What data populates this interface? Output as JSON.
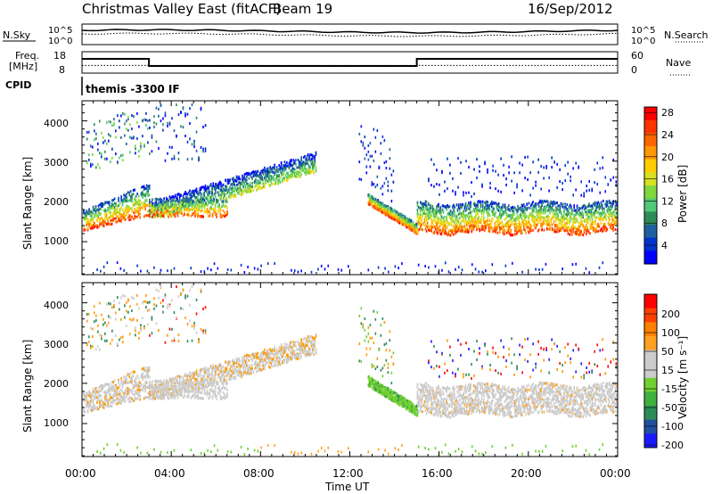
{
  "header": {
    "title": "Christmas Valley East (fitACF)",
    "beam": "Beam 19",
    "date": "16/Sep/2012"
  },
  "top_panels": {
    "nsky_label": "N.Sky",
    "nsearch_label": "N.Search",
    "noise_ticks": [
      "10^5",
      "10^0"
    ],
    "freq_label_1": "Freq.",
    "freq_label_2": "[MHz]",
    "freq_ticks": [
      "18",
      "8"
    ],
    "nave_label": "Nave",
    "nave_ticks": [
      "60",
      "0"
    ],
    "cpid_label": "CPID",
    "cpid_value": "themis -3300 IF",
    "frequency_mhz": [
      {
        "start_ut": 0.0,
        "end_ut": 3.0,
        "value": 15.5
      },
      {
        "start_ut": 3.0,
        "end_ut": 15.0,
        "value": 10.5
      },
      {
        "start_ut": 15.0,
        "end_ut": 24.0,
        "value": 15.5
      }
    ],
    "nave_level": 20
  },
  "power_panel": {
    "ylabel": "Slant Range [km]",
    "yticks": [
      "1000",
      "2000",
      "3000",
      "4000"
    ],
    "colorbar_label": "Power [dB]",
    "colorbar_ticks": [
      "4",
      "8",
      "12",
      "16",
      "20",
      "24",
      "28"
    ],
    "colorbar_colors": [
      "#0000ff",
      "#0033cc",
      "#2060a0",
      "#2e8b57",
      "#50c878",
      "#7fd83c",
      "#d8e020",
      "#ffcc00",
      "#ff9900",
      "#ff6600",
      "#ff3300",
      "#ff0000"
    ]
  },
  "velocity_panel": {
    "ylabel": "Slant Range [km]",
    "yticks": [
      "1000",
      "2000",
      "3000",
      "4000"
    ],
    "colorbar_label": "Velocity [m s⁻¹]",
    "colorbar_ticks": [
      "200",
      "100",
      "50",
      "15",
      "-15",
      "-50",
      "-100",
      "-200"
    ],
    "colorbar_colors": [
      "#1a1aff",
      "#2050a0",
      "#2e8b57",
      "#40b040",
      "#70d030",
      "#cccccc",
      "#cccccc",
      "#ffa020",
      "#ff8000",
      "#ff4000",
      "#ff0000"
    ]
  },
  "xaxis": {
    "label": "Time UT",
    "ticks": [
      "00:00",
      "04:00",
      "08:00",
      "12:00",
      "16:00",
      "20:00",
      "00:00"
    ]
  },
  "chart_data": {
    "type": "heatmap",
    "title": "Christmas Valley East (fitACF)",
    "subtitle": "Beam 19",
    "date": "16/Sep/2012",
    "xlabel": "Time UT",
    "ylabel": "Slant Range [km]",
    "xlim_hours": [
      0,
      24
    ],
    "ylim_km": [
      180,
      4500
    ],
    "series": [
      {
        "name": "Power [dB]",
        "crange": [
          0,
          30
        ]
      },
      {
        "name": "Velocity [m s⁻¹]",
        "crange": [
          -250,
          250
        ]
      }
    ],
    "features": [
      {
        "name": "main_band_morning",
        "t_start": 0.0,
        "t_end": 3.0,
        "range_start": 1300,
        "range_end": 2000
      },
      {
        "name": "rising_arc",
        "t_start": 3.0,
        "t_end": 10.5,
        "range_start": 1700,
        "range_end": 3000
      },
      {
        "name": "descending_arc",
        "t_start": 12.8,
        "t_end": 15.0,
        "range_start": 2000,
        "range_end": 1250
      },
      {
        "name": "evening_band",
        "t_start": 15.0,
        "t_end": 24.0,
        "range_start": 1200,
        "range_end": 1800
      },
      {
        "name": "ground_scatter_near",
        "t_start": 3.0,
        "t_end": 15.0,
        "range_start": 200,
        "range_end": 400
      }
    ]
  }
}
